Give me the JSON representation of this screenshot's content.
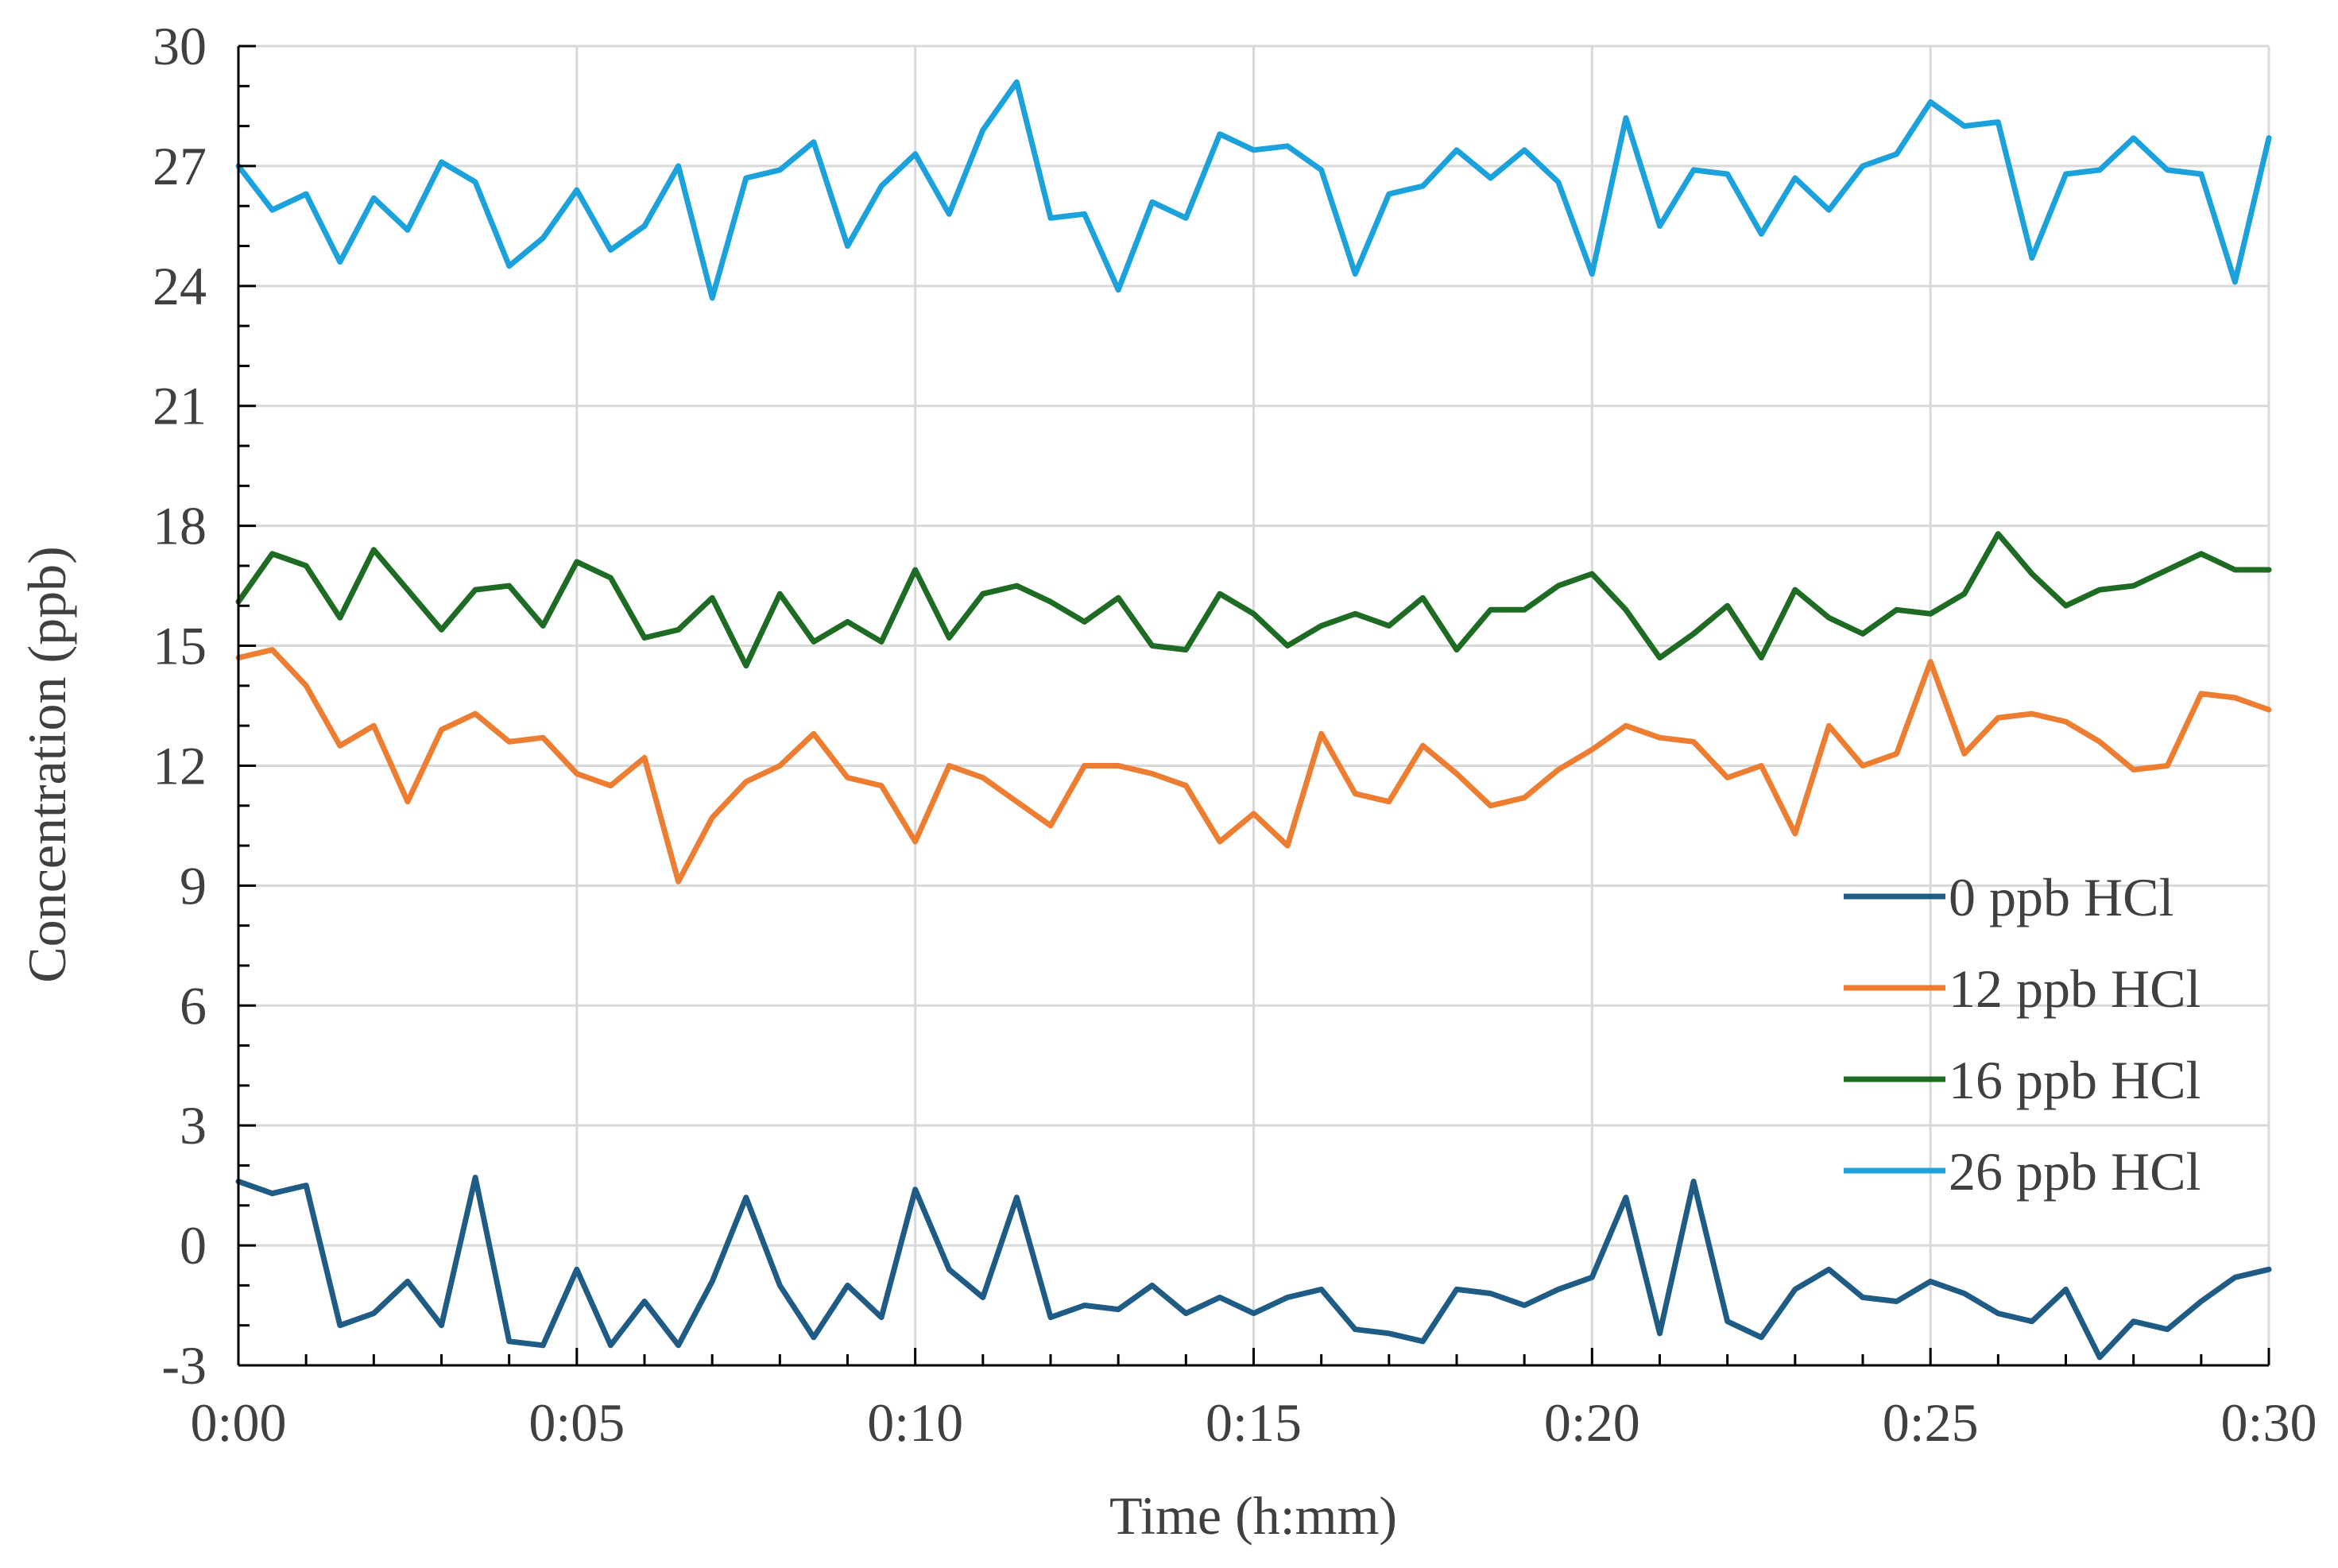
{
  "chart_data": {
    "type": "line",
    "title": "",
    "xlabel": "Time (h:mm)",
    "ylabel": "Concentration (ppb)",
    "xlim": [
      0,
      30
    ],
    "ylim": [
      -3,
      30
    ],
    "x_ticks": [
      0,
      5,
      10,
      15,
      20,
      25,
      30
    ],
    "x_tick_labels": [
      "0:00",
      "0:05",
      "0:10",
      "0:15",
      "0:20",
      "0:25",
      "0:30"
    ],
    "y_ticks": [
      -3,
      0,
      3,
      6,
      9,
      12,
      15,
      18,
      21,
      24,
      27,
      30
    ],
    "y_tick_labels": [
      "-3",
      "0",
      "3",
      "6",
      "9",
      "12",
      "15",
      "18",
      "21",
      "24",
      "27",
      "30"
    ],
    "x_unit": "minutes",
    "x_step": 0.5,
    "grid": true,
    "legend_position": "right",
    "series": [
      {
        "name": "0 ppb HCl",
        "color": "#1f5c85",
        "values": [
          1.6,
          1.3,
          1.5,
          -2.0,
          -1.7,
          -0.9,
          -2.0,
          1.7,
          -2.4,
          -2.5,
          -0.6,
          -2.5,
          -1.4,
          -2.5,
          -0.9,
          1.2,
          -1.0,
          -2.3,
          -1.0,
          -1.8,
          1.4,
          -0.6,
          -1.3,
          1.2,
          -1.8,
          -1.5,
          -1.6,
          -1.0,
          -1.7,
          -1.3,
          -1.7,
          -1.3,
          -1.1,
          -2.1,
          -2.2,
          -2.4,
          -1.1,
          -1.2,
          -1.5,
          -1.1,
          -0.8,
          1.2,
          -2.2,
          1.6,
          -1.9,
          -2.3,
          -1.1,
          -0.6,
          -1.3,
          -1.4,
          -0.9,
          -1.2,
          -1.7,
          -1.9,
          -1.1,
          -2.8,
          -1.9,
          -2.1,
          -1.4,
          -0.8,
          -0.6
        ]
      },
      {
        "name": "12 ppb HCl",
        "color": "#ed7d31",
        "values": [
          14.7,
          14.9,
          14.0,
          12.5,
          13.0,
          11.1,
          12.9,
          13.3,
          12.6,
          12.7,
          11.8,
          11.5,
          12.2,
          9.1,
          10.7,
          11.6,
          12.0,
          12.8,
          11.7,
          11.5,
          10.1,
          12.0,
          11.7,
          11.1,
          10.5,
          12.0,
          12.0,
          11.8,
          11.5,
          10.1,
          10.8,
          10.0,
          12.8,
          11.3,
          11.1,
          12.5,
          11.8,
          11.0,
          11.2,
          11.9,
          12.4,
          13.0,
          12.7,
          12.6,
          11.7,
          12.0,
          10.3,
          13.0,
          12.0,
          12.3,
          14.6,
          12.3,
          13.2,
          13.3,
          13.1,
          12.6,
          11.9,
          12.0,
          13.8,
          13.7,
          13.4
        ]
      },
      {
        "name": "16 ppb HCl",
        "color": "#1e6b24",
        "values": [
          16.1,
          17.3,
          17.0,
          15.7,
          17.4,
          16.4,
          15.4,
          16.4,
          16.5,
          15.5,
          17.1,
          16.7,
          15.2,
          15.4,
          16.2,
          14.5,
          16.3,
          15.1,
          15.6,
          15.1,
          16.9,
          15.2,
          16.3,
          16.5,
          16.1,
          15.6,
          16.2,
          15.0,
          14.9,
          16.3,
          15.8,
          15.0,
          15.5,
          15.8,
          15.5,
          16.2,
          14.9,
          15.9,
          15.9,
          16.5,
          16.8,
          15.9,
          14.7,
          15.3,
          16.0,
          14.7,
          16.4,
          15.7,
          15.3,
          15.9,
          15.8,
          16.3,
          17.8,
          16.8,
          16.0,
          16.4,
          16.5,
          16.9,
          17.3,
          16.9,
          16.9
        ]
      },
      {
        "name": "26 ppb HCl",
        "color": "#1ba1dc",
        "values": [
          27.0,
          25.9,
          26.3,
          24.6,
          26.2,
          25.4,
          27.1,
          26.6,
          24.5,
          25.2,
          26.4,
          24.9,
          25.5,
          27.0,
          23.7,
          26.7,
          26.9,
          27.6,
          25.0,
          26.5,
          27.3,
          25.8,
          27.9,
          29.1,
          25.7,
          25.8,
          23.9,
          26.1,
          25.7,
          27.8,
          27.4,
          27.5,
          26.9,
          24.3,
          26.3,
          26.5,
          27.4,
          26.7,
          27.4,
          26.6,
          24.3,
          28.2,
          25.5,
          26.9,
          26.8,
          25.3,
          26.7,
          25.9,
          27.0,
          27.3,
          28.6,
          28.0,
          28.1,
          24.7,
          26.8,
          26.9,
          27.7,
          26.9,
          26.8,
          24.1,
          27.7
        ]
      }
    ]
  }
}
